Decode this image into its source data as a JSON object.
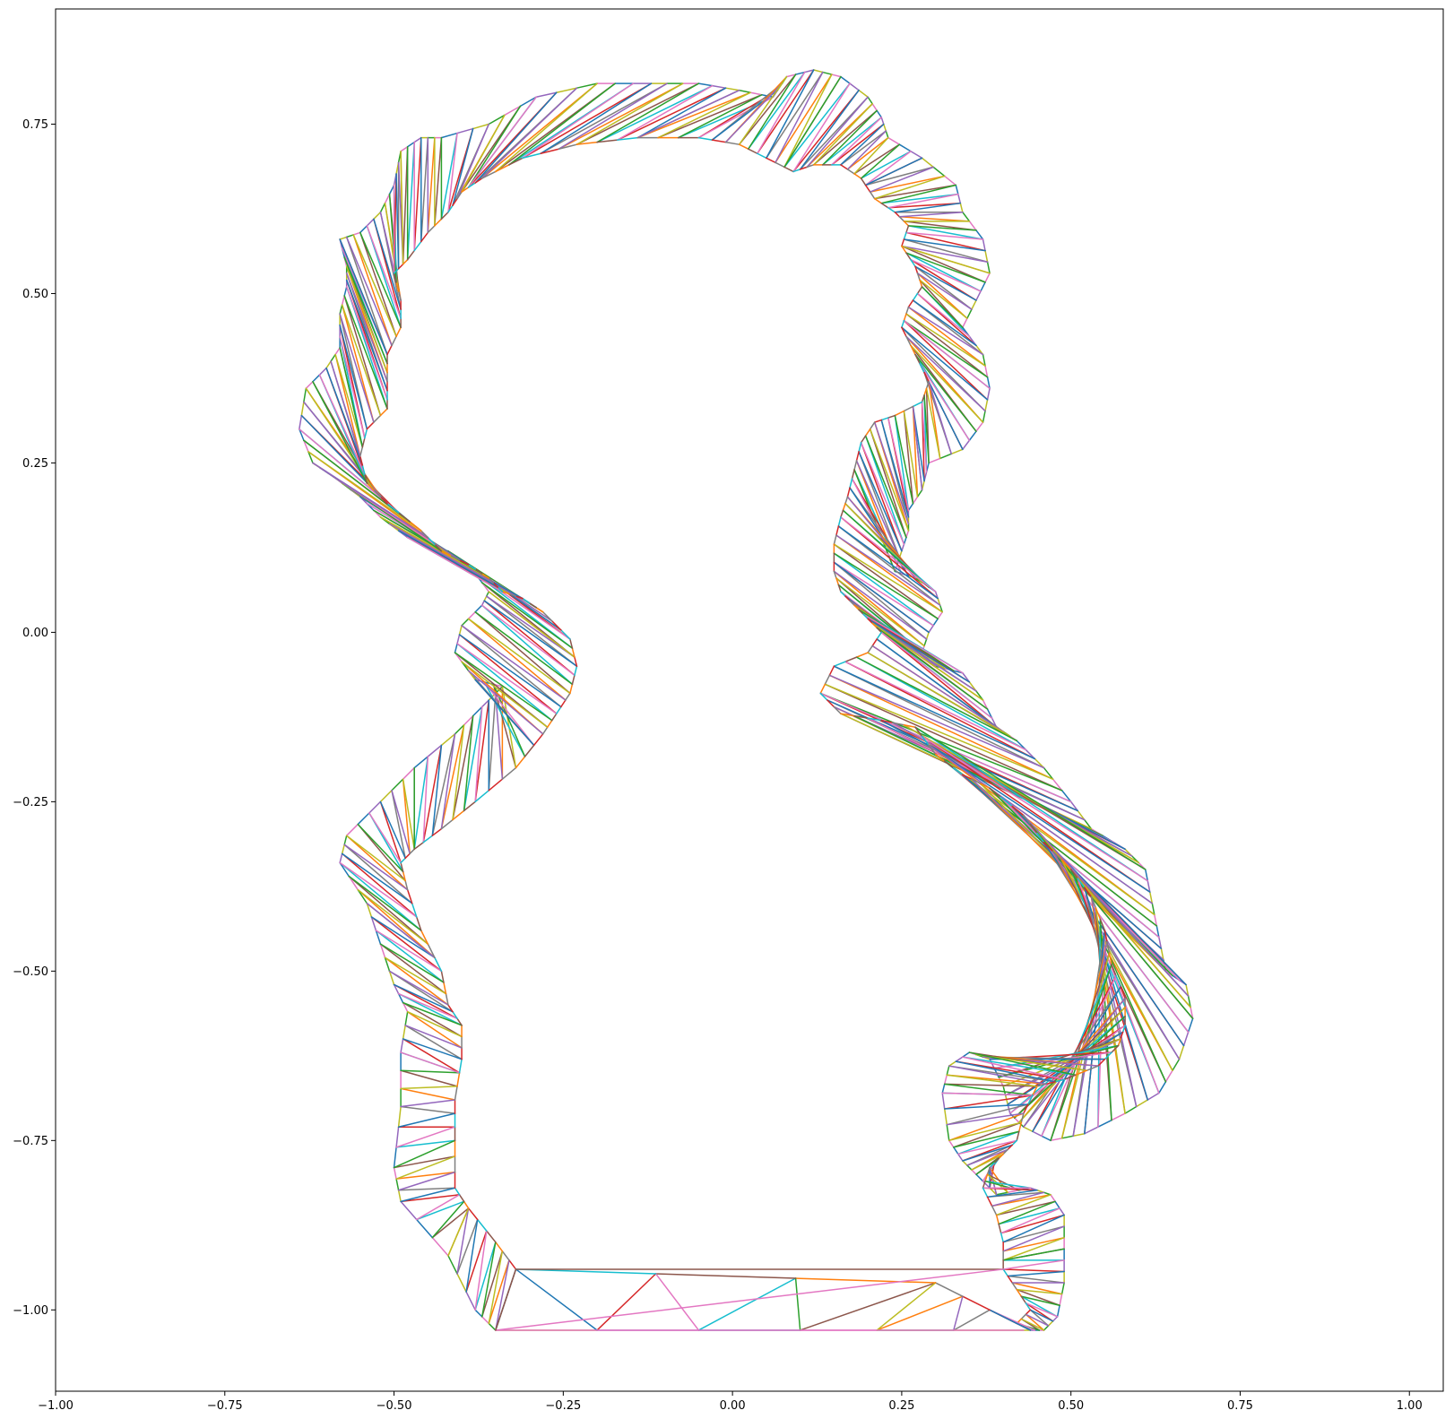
{
  "chart_data": {
    "type": "line",
    "title": "",
    "xlabel": "",
    "ylabel": "",
    "xlim": [
      -1.0,
      1.05
    ],
    "ylim": [
      -1.12,
      0.92
    ],
    "grid": false,
    "legend": "none",
    "x_ticks": [
      {
        "value": -1.0,
        "label": "−1.00"
      },
      {
        "value": -0.75,
        "label": "−0.75"
      },
      {
        "value": -0.5,
        "label": "−0.50"
      },
      {
        "value": -0.25,
        "label": "−0.25"
      },
      {
        "value": 0.0,
        "label": "0.00"
      },
      {
        "value": 0.25,
        "label": "0.25"
      },
      {
        "value": 0.5,
        "label": "0.50"
      },
      {
        "value": 0.75,
        "label": "0.75"
      },
      {
        "value": 1.0,
        "label": "1.00"
      }
    ],
    "y_ticks": [
      {
        "value": 0.75,
        "label": "0.75"
      },
      {
        "value": 0.5,
        "label": "0.50"
      },
      {
        "value": 0.25,
        "label": "0.25"
      },
      {
        "value": 0.0,
        "label": "0.00"
      },
      {
        "value": -0.25,
        "label": "−0.25"
      },
      {
        "value": -0.5,
        "label": "−0.50"
      },
      {
        "value": -0.75,
        "label": "−0.75"
      },
      {
        "value": -1.0,
        "label": "−1.00"
      }
    ],
    "color_cycle": [
      "#1f77b4",
      "#ff7f0e",
      "#2ca02c",
      "#d62728",
      "#9467bd",
      "#8c564b",
      "#e377c2",
      "#7f7f7f",
      "#bcbd22",
      "#17becf"
    ],
    "outer_boundary": [
      [
        -0.35,
        -1.03
      ],
      [
        -0.38,
        -1.0
      ],
      [
        -0.42,
        -0.92
      ],
      [
        -0.49,
        -0.84
      ],
      [
        -0.5,
        -0.79
      ],
      [
        -0.49,
        -0.7
      ],
      [
        -0.49,
        -0.62
      ],
      [
        -0.48,
        -0.56
      ],
      [
        -0.5,
        -0.52
      ],
      [
        -0.52,
        -0.46
      ],
      [
        -0.54,
        -0.4
      ],
      [
        -0.58,
        -0.34
      ],
      [
        -0.57,
        -0.3
      ],
      [
        -0.52,
        -0.25
      ],
      [
        -0.47,
        -0.2
      ],
      [
        -0.41,
        -0.15
      ],
      [
        -0.37,
        -0.11
      ],
      [
        -0.34,
        -0.08
      ],
      [
        -0.38,
        -0.07
      ],
      [
        -0.41,
        -0.03
      ],
      [
        -0.4,
        0.01
      ],
      [
        -0.37,
        0.04
      ],
      [
        -0.36,
        0.06
      ],
      [
        -0.39,
        0.1
      ],
      [
        -0.42,
        0.12
      ],
      [
        -0.46,
        0.13
      ],
      [
        -0.48,
        0.14
      ],
      [
        -0.52,
        0.17
      ],
      [
        -0.55,
        0.2
      ],
      [
        -0.59,
        0.23
      ],
      [
        -0.62,
        0.25
      ],
      [
        -0.64,
        0.3
      ],
      [
        -0.63,
        0.36
      ],
      [
        -0.6,
        0.39
      ],
      [
        -0.58,
        0.42
      ],
      [
        -0.58,
        0.47
      ],
      [
        -0.57,
        0.51
      ],
      [
        -0.57,
        0.54
      ],
      [
        -0.58,
        0.58
      ],
      [
        -0.55,
        0.59
      ],
      [
        -0.52,
        0.62
      ],
      [
        -0.5,
        0.66
      ],
      [
        -0.49,
        0.71
      ],
      [
        -0.46,
        0.73
      ],
      [
        -0.43,
        0.73
      ],
      [
        -0.36,
        0.75
      ],
      [
        -0.29,
        0.79
      ],
      [
        -0.2,
        0.81
      ],
      [
        -0.12,
        0.81
      ],
      [
        -0.05,
        0.81
      ],
      [
        0.01,
        0.8
      ],
      [
        0.06,
        0.79
      ],
      [
        0.08,
        0.82
      ],
      [
        0.12,
        0.83
      ],
      [
        0.16,
        0.82
      ],
      [
        0.2,
        0.79
      ],
      [
        0.22,
        0.76
      ],
      [
        0.23,
        0.73
      ],
      [
        0.28,
        0.7
      ],
      [
        0.33,
        0.66
      ],
      [
        0.34,
        0.62
      ],
      [
        0.37,
        0.58
      ],
      [
        0.38,
        0.53
      ],
      [
        0.36,
        0.49
      ],
      [
        0.34,
        0.45
      ],
      [
        0.37,
        0.41
      ],
      [
        0.38,
        0.36
      ],
      [
        0.37,
        0.31
      ],
      [
        0.34,
        0.27
      ],
      [
        0.29,
        0.25
      ],
      [
        0.28,
        0.21
      ],
      [
        0.26,
        0.18
      ],
      [
        0.26,
        0.15
      ],
      [
        0.25,
        0.12
      ],
      [
        0.24,
        0.09
      ],
      [
        0.27,
        0.08
      ],
      [
        0.3,
        0.06
      ],
      [
        0.31,
        0.03
      ],
      [
        0.29,
        0.0
      ],
      [
        0.28,
        -0.03
      ],
      [
        0.3,
        -0.05
      ],
      [
        0.34,
        -0.06
      ],
      [
        0.37,
        -0.1
      ],
      [
        0.39,
        -0.14
      ],
      [
        0.42,
        -0.16
      ],
      [
        0.46,
        -0.2
      ],
      [
        0.5,
        -0.25
      ],
      [
        0.53,
        -0.29
      ],
      [
        0.58,
        -0.32
      ],
      [
        0.61,
        -0.35
      ],
      [
        0.62,
        -0.4
      ],
      [
        0.63,
        -0.45
      ],
      [
        0.64,
        -0.5
      ],
      [
        0.67,
        -0.52
      ],
      [
        0.68,
        -0.57
      ],
      [
        0.66,
        -0.63
      ],
      [
        0.63,
        -0.68
      ],
      [
        0.58,
        -0.71
      ],
      [
        0.52,
        -0.74
      ],
      [
        0.47,
        -0.75
      ],
      [
        0.43,
        -0.73
      ],
      [
        0.41,
        -0.71
      ],
      [
        0.4,
        -0.67
      ],
      [
        0.38,
        -0.63
      ],
      [
        0.35,
        -0.62
      ],
      [
        0.32,
        -0.64
      ],
      [
        0.31,
        -0.68
      ],
      [
        0.32,
        -0.75
      ],
      [
        0.34,
        -0.78
      ],
      [
        0.36,
        -0.8
      ],
      [
        0.39,
        -0.83
      ],
      [
        0.44,
        -0.82
      ],
      [
        0.47,
        -0.83
      ],
      [
        0.49,
        -0.86
      ],
      [
        0.49,
        -0.91
      ],
      [
        0.49,
        -0.96
      ],
      [
        0.48,
        -1.01
      ],
      [
        0.46,
        -1.03
      ],
      [
        0.44,
        -1.03
      ],
      [
        0.1,
        -1.03
      ],
      [
        -0.35,
        -1.03
      ]
    ],
    "inner_boundary": [
      [
        -0.32,
        -0.94
      ],
      [
        -0.35,
        -0.9
      ],
      [
        -0.39,
        -0.85
      ],
      [
        -0.41,
        -0.82
      ],
      [
        -0.41,
        -0.75
      ],
      [
        -0.41,
        -0.69
      ],
      [
        -0.4,
        -0.63
      ],
      [
        -0.4,
        -0.58
      ],
      [
        -0.42,
        -0.55
      ],
      [
        -0.43,
        -0.5
      ],
      [
        -0.46,
        -0.44
      ],
      [
        -0.48,
        -0.38
      ],
      [
        -0.49,
        -0.34
      ],
      [
        -0.47,
        -0.32
      ],
      [
        -0.43,
        -0.29
      ],
      [
        -0.38,
        -0.25
      ],
      [
        -0.32,
        -0.2
      ],
      [
        -0.28,
        -0.15
      ],
      [
        -0.26,
        -0.12
      ],
      [
        -0.24,
        -0.09
      ],
      [
        -0.23,
        -0.05
      ],
      [
        -0.24,
        -0.01
      ],
      [
        -0.28,
        0.03
      ],
      [
        -0.31,
        0.05
      ],
      [
        -0.34,
        0.06
      ],
      [
        -0.36,
        0.08
      ],
      [
        -0.39,
        0.1
      ],
      [
        -0.43,
        0.12
      ],
      [
        -0.46,
        0.15
      ],
      [
        -0.51,
        0.19
      ],
      [
        -0.54,
        0.22
      ],
      [
        -0.55,
        0.26
      ],
      [
        -0.54,
        0.3
      ],
      [
        -0.51,
        0.33
      ],
      [
        -0.51,
        0.37
      ],
      [
        -0.51,
        0.41
      ],
      [
        -0.49,
        0.45
      ],
      [
        -0.49,
        0.49
      ],
      [
        -0.5,
        0.53
      ],
      [
        -0.48,
        0.55
      ],
      [
        -0.45,
        0.59
      ],
      [
        -0.42,
        0.62
      ],
      [
        -0.4,
        0.65
      ],
      [
        -0.37,
        0.67
      ],
      [
        -0.31,
        0.7
      ],
      [
        -0.23,
        0.72
      ],
      [
        -0.14,
        0.73
      ],
      [
        -0.05,
        0.73
      ],
      [
        0.01,
        0.72
      ],
      [
        0.05,
        0.7
      ],
      [
        0.09,
        0.68
      ],
      [
        0.12,
        0.69
      ],
      [
        0.16,
        0.69
      ],
      [
        0.19,
        0.67
      ],
      [
        0.21,
        0.64
      ],
      [
        0.24,
        0.62
      ],
      [
        0.26,
        0.6
      ],
      [
        0.25,
        0.57
      ],
      [
        0.27,
        0.54
      ],
      [
        0.28,
        0.51
      ],
      [
        0.26,
        0.48
      ],
      [
        0.25,
        0.45
      ],
      [
        0.27,
        0.41
      ],
      [
        0.29,
        0.37
      ],
      [
        0.28,
        0.34
      ],
      [
        0.24,
        0.32
      ],
      [
        0.21,
        0.31
      ],
      [
        0.19,
        0.28
      ],
      [
        0.18,
        0.24
      ],
      [
        0.17,
        0.2
      ],
      [
        0.16,
        0.17
      ],
      [
        0.15,
        0.13
      ],
      [
        0.15,
        0.09
      ],
      [
        0.16,
        0.06
      ],
      [
        0.18,
        0.04
      ],
      [
        0.2,
        0.02
      ],
      [
        0.22,
        0.0
      ],
      [
        0.2,
        -0.03
      ],
      [
        0.15,
        -0.05
      ],
      [
        0.13,
        -0.09
      ],
      [
        0.16,
        -0.12
      ],
      [
        0.22,
        -0.13
      ],
      [
        0.27,
        -0.14
      ],
      [
        0.3,
        -0.18
      ],
      [
        0.34,
        -0.21
      ],
      [
        0.38,
        -0.23
      ],
      [
        0.43,
        -0.27
      ],
      [
        0.46,
        -0.31
      ],
      [
        0.5,
        -0.35
      ],
      [
        0.53,
        -0.39
      ],
      [
        0.55,
        -0.44
      ],
      [
        0.56,
        -0.49
      ],
      [
        0.58,
        -0.54
      ],
      [
        0.58,
        -0.58
      ],
      [
        0.57,
        -0.61
      ],
      [
        0.54,
        -0.64
      ],
      [
        0.49,
        -0.66
      ],
      [
        0.45,
        -0.67
      ],
      [
        0.43,
        -0.71
      ],
      [
        0.42,
        -0.75
      ],
      [
        0.4,
        -0.77
      ],
      [
        0.38,
        -0.79
      ],
      [
        0.37,
        -0.82
      ],
      [
        0.39,
        -0.86
      ],
      [
        0.4,
        -0.9
      ],
      [
        0.4,
        -0.94
      ],
      [
        0.42,
        -0.97
      ],
      [
        0.44,
        -1.0
      ],
      [
        0.42,
        -1.02
      ],
      [
        0.3,
        -0.96
      ],
      [
        -0.32,
        -0.94
      ]
    ],
    "cross_edges": [
      {
        "from": [
          -0.32,
          -0.94
        ],
        "to": [
          0.4,
          -0.94
        ]
      },
      {
        "from": [
          -0.35,
          -1.03
        ],
        "to": [
          0.4,
          -0.94
        ]
      },
      {
        "from": [
          -0.35,
          -1.03
        ],
        "to": [
          0.43,
          -1.03
        ]
      },
      {
        "from": [
          -0.35,
          -1.03
        ],
        "to": [
          -0.32,
          -0.94
        ]
      }
    ]
  }
}
